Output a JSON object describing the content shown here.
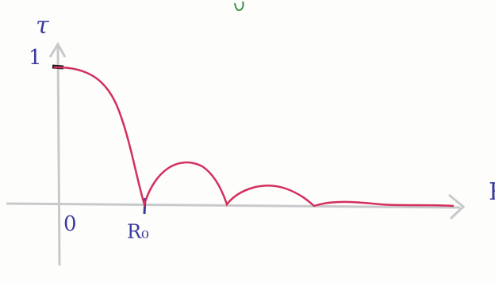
{
  "axes": {
    "y_label": "τ",
    "x_label": "R"
  },
  "labels": {
    "one": "1",
    "origin": "0",
    "r0": "R₀"
  }
}
